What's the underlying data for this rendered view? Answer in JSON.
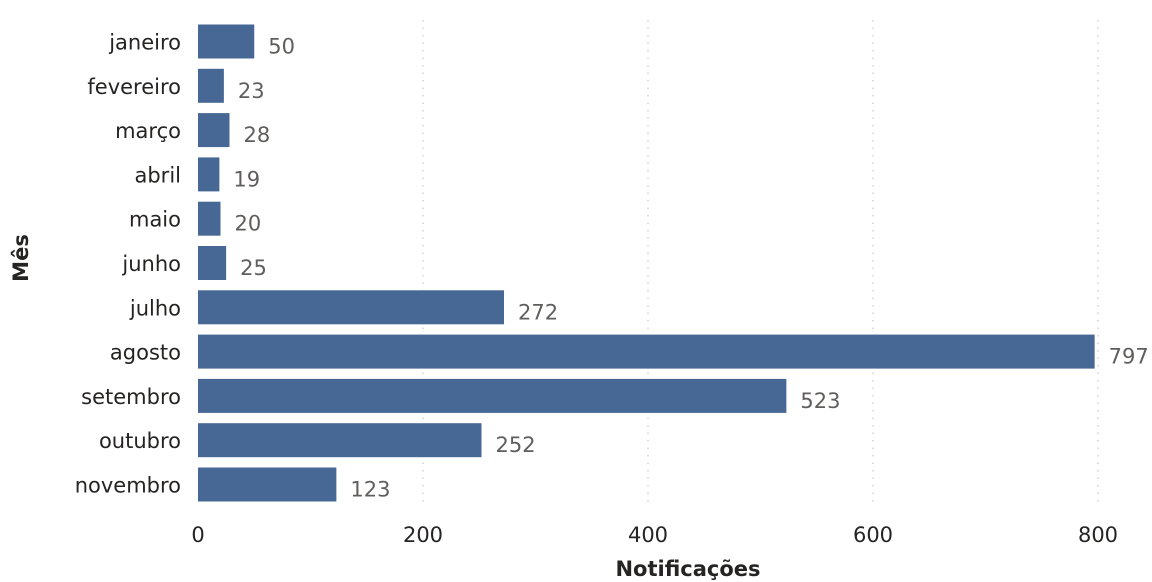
{
  "chart_data": {
    "type": "bar",
    "orientation": "horizontal",
    "categories": [
      "janeiro",
      "fevereiro",
      "março",
      "abril",
      "maio",
      "junho",
      "julho",
      "agosto",
      "setembro",
      "outubro",
      "novembro"
    ],
    "values": [
      50,
      23,
      28,
      19,
      20,
      25,
      272,
      797,
      523,
      252,
      123
    ],
    "xlabel": "Notificações",
    "ylabel": "Mês",
    "xlim": [
      0,
      800
    ],
    "xticks": [
      "0",
      "200",
      "400",
      "600",
      "800"
    ],
    "grid": "vertical dotted",
    "data_labels": true,
    "colors": {
      "bar": "#476894",
      "grid": "#c8c6c4",
      "text": "#252423",
      "data_label": "#605e5c"
    }
  }
}
